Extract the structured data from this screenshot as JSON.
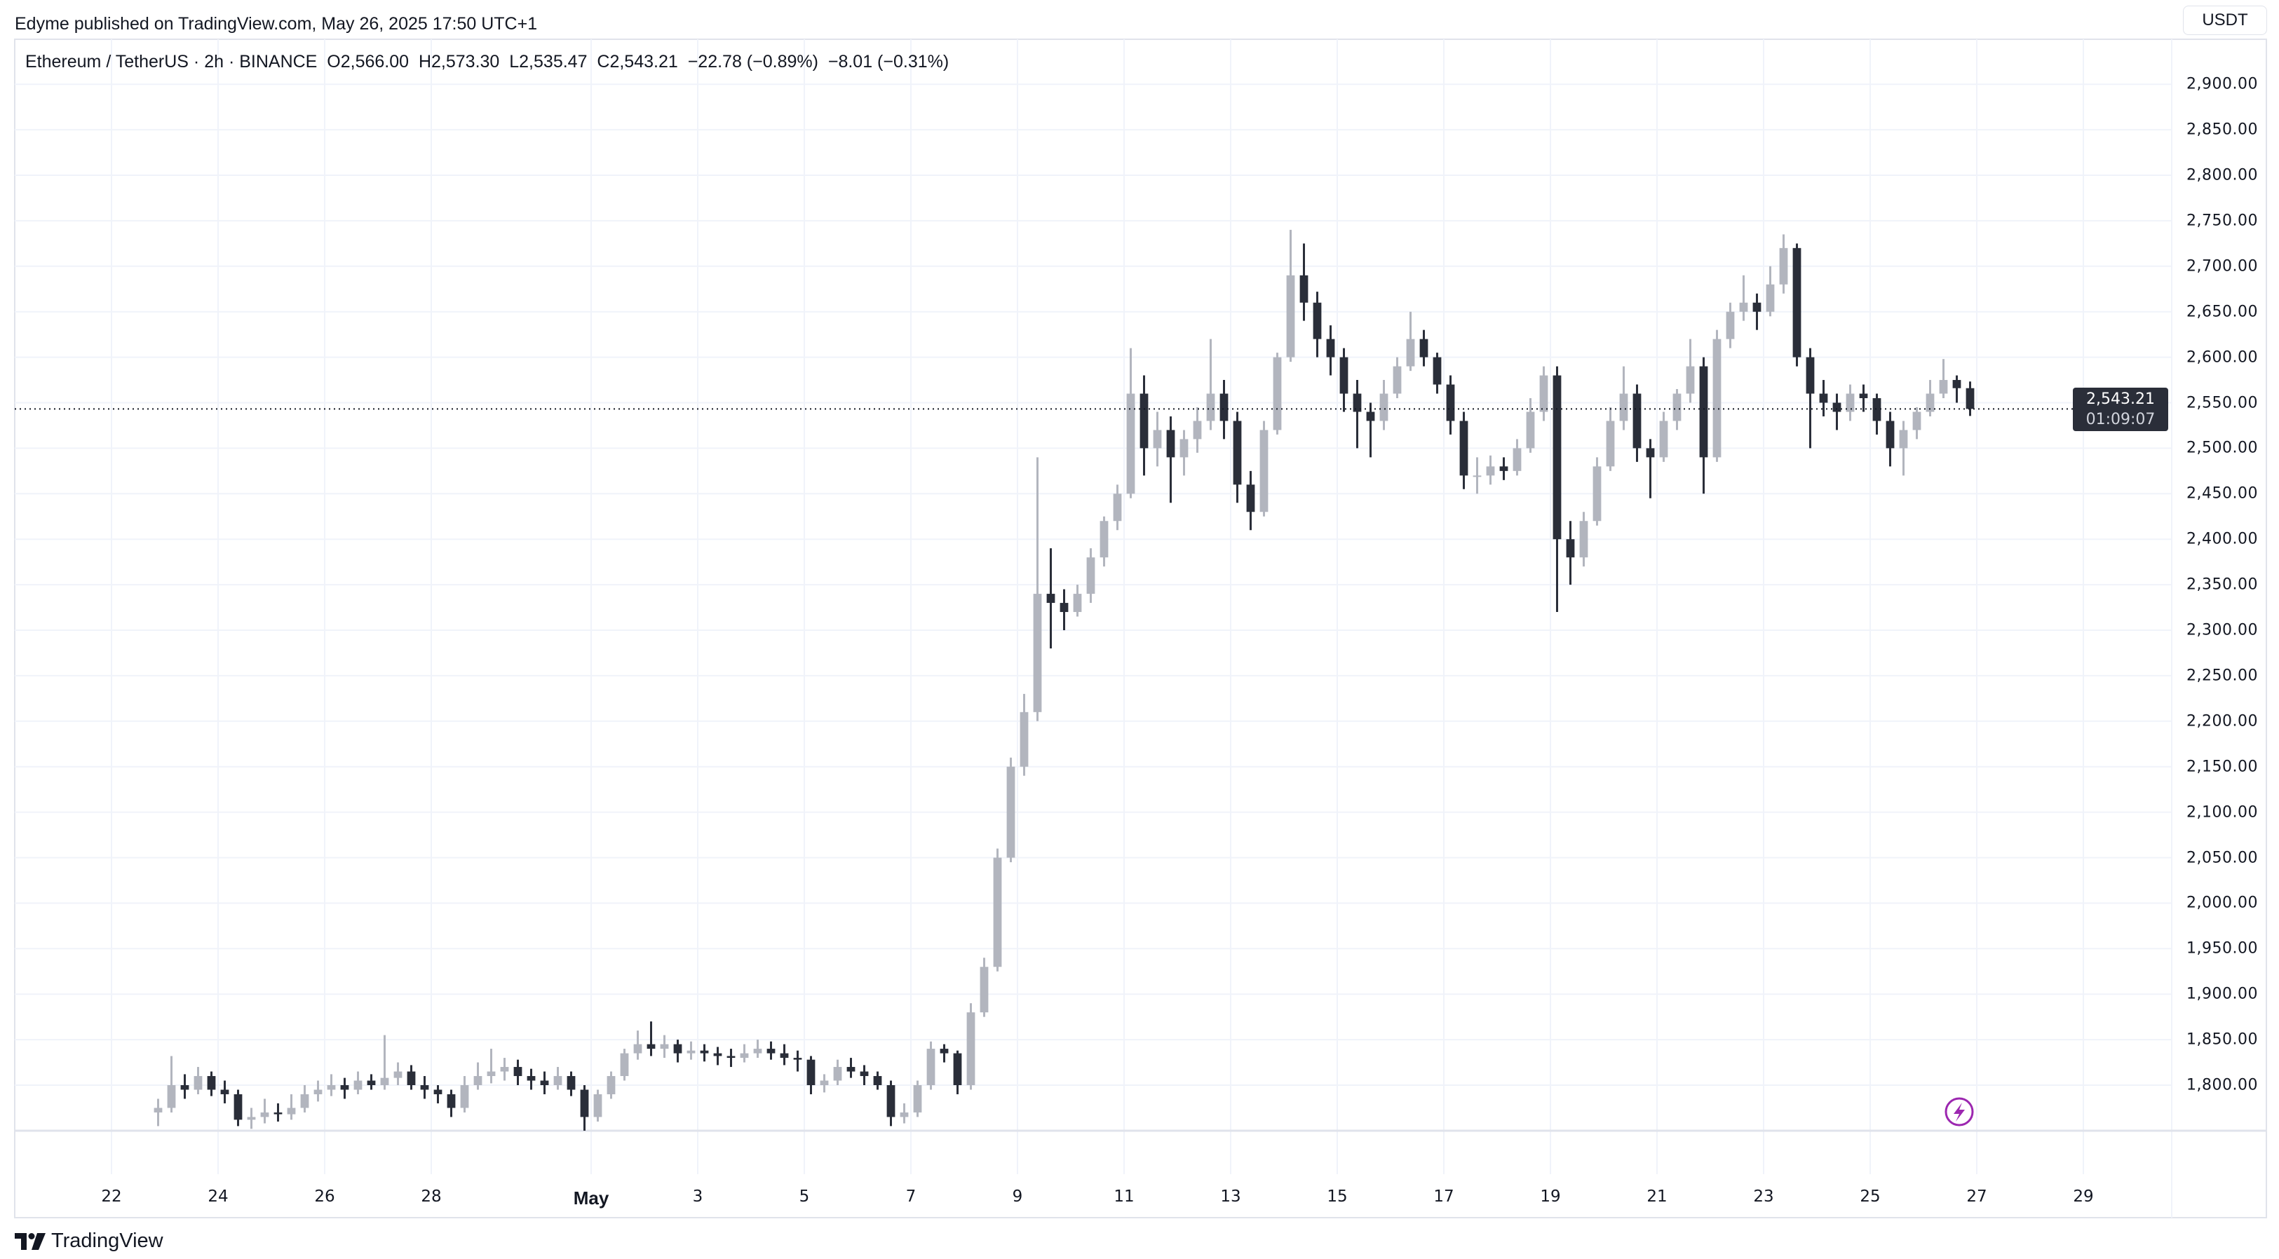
{
  "header": {
    "published": "Edyme published on TradingView.com, May 26, 2025 17:50 UTC+1"
  },
  "legend": {
    "symbol": "Ethereum / TetherUS · 2h · BINANCE",
    "open_label": "O",
    "open": "2,566.00",
    "high_label": "H",
    "high": "2,573.30",
    "low_label": "L",
    "low": "2,535.47",
    "close_label": "C",
    "close": "2,543.21",
    "change": "−22.78 (−0.89%)",
    "change2": "−8.01 (−0.31%)"
  },
  "price_axis": {
    "currency_button": "USDT",
    "last_price": "2,543.21",
    "countdown": "01:09:07"
  },
  "branding": {
    "logo_text": "TradingView"
  },
  "colors": {
    "up": "#b2b5be",
    "down": "#2a2e39",
    "grid": "#f0f3fa",
    "alert_icon": "#9c27b0"
  },
  "chart_data": {
    "type": "candlestick",
    "title": "Ethereum / TetherUS · 2h · BINANCE",
    "note": "OHLC approximated at 6h resolution from the visual",
    "start_day_offset_from_apr22": 0.75,
    "interval_days": 0.25,
    "ylim": [
      1750,
      2920
    ],
    "last_price": 2543.21,
    "yticks": [
      "1,800.00",
      "1,850.00",
      "1,900.00",
      "1,950.00",
      "2,000.00",
      "2,050.00",
      "2,100.00",
      "2,150.00",
      "2,200.00",
      "2,250.00",
      "2,300.00",
      "2,350.00",
      "2,400.00",
      "2,450.00",
      "2,500.00",
      "2,550.00",
      "2,600.00",
      "2,650.00",
      "2,700.00",
      "2,750.00",
      "2,800.00",
      "2,850.00",
      "2,900.00"
    ],
    "ytick_values": [
      1800,
      1850,
      1900,
      1950,
      2000,
      2050,
      2100,
      2150,
      2200,
      2250,
      2300,
      2350,
      2400,
      2450,
      2500,
      2550,
      2600,
      2650,
      2700,
      2750,
      2800,
      2850,
      2900
    ],
    "xticks": [
      {
        "label": "22",
        "day": 0
      },
      {
        "label": "24",
        "day": 2
      },
      {
        "label": "26",
        "day": 4
      },
      {
        "label": "28",
        "day": 6
      },
      {
        "label": "May",
        "day": 9,
        "bold": true
      },
      {
        "label": "3",
        "day": 11
      },
      {
        "label": "5",
        "day": 13
      },
      {
        "label": "7",
        "day": 15
      },
      {
        "label": "9",
        "day": 17
      },
      {
        "label": "11",
        "day": 19
      },
      {
        "label": "13",
        "day": 21
      },
      {
        "label": "15",
        "day": 23
      },
      {
        "label": "17",
        "day": 25
      },
      {
        "label": "19",
        "day": 27
      },
      {
        "label": "21",
        "day": 29
      },
      {
        "label": "23",
        "day": 31
      },
      {
        "label": "25",
        "day": 33
      },
      {
        "label": "27",
        "day": 35
      },
      {
        "label": "29",
        "day": 37
      }
    ],
    "ohlc": [
      [
        1770,
        1785,
        1755,
        1775
      ],
      [
        1775,
        1832,
        1770,
        1800
      ],
      [
        1800,
        1812,
        1785,
        1795
      ],
      [
        1795,
        1820,
        1790,
        1810
      ],
      [
        1810,
        1815,
        1788,
        1795
      ],
      [
        1795,
        1805,
        1780,
        1790
      ],
      [
        1790,
        1795,
        1755,
        1762
      ],
      [
        1762,
        1775,
        1752,
        1765
      ],
      [
        1765,
        1785,
        1758,
        1770
      ],
      [
        1770,
        1780,
        1760,
        1768
      ],
      [
        1768,
        1790,
        1762,
        1775
      ],
      [
        1775,
        1800,
        1770,
        1790
      ],
      [
        1790,
        1805,
        1782,
        1795
      ],
      [
        1795,
        1812,
        1788,
        1800
      ],
      [
        1800,
        1808,
        1785,
        1795
      ],
      [
        1795,
        1815,
        1790,
        1805
      ],
      [
        1805,
        1812,
        1795,
        1800
      ],
      [
        1800,
        1855,
        1795,
        1808
      ],
      [
        1808,
        1825,
        1800,
        1815
      ],
      [
        1815,
        1822,
        1795,
        1800
      ],
      [
        1800,
        1810,
        1785,
        1795
      ],
      [
        1795,
        1800,
        1780,
        1790
      ],
      [
        1790,
        1795,
        1765,
        1775
      ],
      [
        1775,
        1810,
        1770,
        1800
      ],
      [
        1800,
        1825,
        1795,
        1810
      ],
      [
        1810,
        1840,
        1802,
        1815
      ],
      [
        1815,
        1830,
        1805,
        1820
      ],
      [
        1820,
        1828,
        1800,
        1810
      ],
      [
        1810,
        1818,
        1795,
        1805
      ],
      [
        1805,
        1815,
        1790,
        1800
      ],
      [
        1800,
        1820,
        1795,
        1810
      ],
      [
        1810,
        1815,
        1788,
        1795
      ],
      [
        1795,
        1800,
        1745,
        1765
      ],
      [
        1765,
        1795,
        1760,
        1790
      ],
      [
        1790,
        1815,
        1785,
        1810
      ],
      [
        1810,
        1840,
        1805,
        1835
      ],
      [
        1835,
        1860,
        1828,
        1845
      ],
      [
        1845,
        1870,
        1832,
        1840
      ],
      [
        1840,
        1855,
        1830,
        1845
      ],
      [
        1845,
        1850,
        1825,
        1835
      ],
      [
        1835,
        1848,
        1828,
        1838
      ],
      [
        1838,
        1845,
        1826,
        1835
      ],
      [
        1835,
        1842,
        1822,
        1832
      ],
      [
        1832,
        1840,
        1820,
        1830
      ],
      [
        1830,
        1845,
        1825,
        1835
      ],
      [
        1835,
        1850,
        1830,
        1840
      ],
      [
        1840,
        1848,
        1828,
        1835
      ],
      [
        1835,
        1845,
        1822,
        1830
      ],
      [
        1830,
        1838,
        1815,
        1828
      ],
      [
        1828,
        1832,
        1790,
        1800
      ],
      [
        1800,
        1812,
        1792,
        1805
      ],
      [
        1805,
        1828,
        1800,
        1820
      ],
      [
        1820,
        1830,
        1808,
        1815
      ],
      [
        1815,
        1822,
        1800,
        1810
      ],
      [
        1810,
        1815,
        1795,
        1800
      ],
      [
        1800,
        1805,
        1755,
        1765
      ],
      [
        1765,
        1780,
        1758,
        1770
      ],
      [
        1770,
        1805,
        1765,
        1800
      ],
      [
        1800,
        1848,
        1795,
        1840
      ],
      [
        1840,
        1845,
        1825,
        1835
      ],
      [
        1835,
        1838,
        1790,
        1800
      ],
      [
        1800,
        1890,
        1795,
        1880
      ],
      [
        1880,
        1940,
        1875,
        1930
      ],
      [
        1930,
        2060,
        1925,
        2050
      ],
      [
        2050,
        2160,
        2045,
        2150
      ],
      [
        2150,
        2230,
        2140,
        2210
      ],
      [
        2210,
        2490,
        2200,
        2340
      ],
      [
        2340,
        2390,
        2280,
        2330
      ],
      [
        2330,
        2345,
        2300,
        2320
      ],
      [
        2320,
        2350,
        2315,
        2340
      ],
      [
        2340,
        2390,
        2330,
        2380
      ],
      [
        2380,
        2425,
        2370,
        2420
      ],
      [
        2420,
        2460,
        2410,
        2450
      ],
      [
        2450,
        2610,
        2445,
        2560
      ],
      [
        2560,
        2580,
        2470,
        2500
      ],
      [
        2500,
        2540,
        2480,
        2520
      ],
      [
        2520,
        2535,
        2440,
        2490
      ],
      [
        2490,
        2520,
        2470,
        2510
      ],
      [
        2510,
        2545,
        2495,
        2530
      ],
      [
        2530,
        2620,
        2520,
        2560
      ],
      [
        2560,
        2575,
        2510,
        2530
      ],
      [
        2530,
        2540,
        2440,
        2460
      ],
      [
        2460,
        2475,
        2410,
        2430
      ],
      [
        2430,
        2530,
        2425,
        2520
      ],
      [
        2520,
        2605,
        2515,
        2600
      ],
      [
        2600,
        2740,
        2595,
        2690
      ],
      [
        2690,
        2725,
        2640,
        2660
      ],
      [
        2660,
        2672,
        2600,
        2620
      ],
      [
        2620,
        2635,
        2580,
        2600
      ],
      [
        2600,
        2610,
        2540,
        2560
      ],
      [
        2560,
        2575,
        2500,
        2540
      ],
      [
        2540,
        2550,
        2490,
        2530
      ],
      [
        2530,
        2575,
        2520,
        2560
      ],
      [
        2560,
        2600,
        2555,
        2590
      ],
      [
        2590,
        2650,
        2585,
        2620
      ],
      [
        2620,
        2630,
        2590,
        2600
      ],
      [
        2600,
        2605,
        2560,
        2570
      ],
      [
        2570,
        2580,
        2515,
        2530
      ],
      [
        2530,
        2540,
        2455,
        2470
      ],
      [
        2470,
        2490,
        2450,
        2470
      ],
      [
        2470,
        2492,
        2460,
        2480
      ],
      [
        2480,
        2490,
        2465,
        2475
      ],
      [
        2475,
        2510,
        2470,
        2500
      ],
      [
        2500,
        2555,
        2495,
        2540
      ],
      [
        2540,
        2590,
        2530,
        2580
      ],
      [
        2580,
        2590,
        2320,
        2400
      ],
      [
        2400,
        2420,
        2350,
        2380
      ],
      [
        2380,
        2430,
        2370,
        2420
      ],
      [
        2420,
        2490,
        2415,
        2480
      ],
      [
        2480,
        2545,
        2475,
        2530
      ],
      [
        2530,
        2590,
        2520,
        2560
      ],
      [
        2560,
        2570,
        2485,
        2500
      ],
      [
        2500,
        2510,
        2445,
        2490
      ],
      [
        2490,
        2540,
        2485,
        2530
      ],
      [
        2530,
        2565,
        2520,
        2560
      ],
      [
        2560,
        2620,
        2550,
        2590
      ],
      [
        2590,
        2600,
        2450,
        2490
      ],
      [
        2490,
        2630,
        2485,
        2620
      ],
      [
        2620,
        2660,
        2610,
        2650
      ],
      [
        2650,
        2690,
        2640,
        2660
      ],
      [
        2660,
        2670,
        2630,
        2650
      ],
      [
        2650,
        2700,
        2645,
        2680
      ],
      [
        2680,
        2735,
        2670,
        2720
      ],
      [
        2720,
        2725,
        2590,
        2600
      ],
      [
        2600,
        2610,
        2500,
        2560
      ],
      [
        2560,
        2575,
        2535,
        2550
      ],
      [
        2550,
        2560,
        2520,
        2540
      ],
      [
        2540,
        2570,
        2530,
        2560
      ],
      [
        2560,
        2570,
        2540,
        2555
      ],
      [
        2555,
        2560,
        2515,
        2530
      ],
      [
        2530,
        2540,
        2480,
        2500
      ],
      [
        2500,
        2530,
        2470,
        2520
      ],
      [
        2520,
        2545,
        2510,
        2540
      ],
      [
        2540,
        2575,
        2535,
        2560
      ],
      [
        2560,
        2598,
        2555,
        2575
      ],
      [
        2575,
        2580,
        2550,
        2566
      ],
      [
        2566,
        2573.3,
        2535.47,
        2543.21
      ]
    ]
  }
}
